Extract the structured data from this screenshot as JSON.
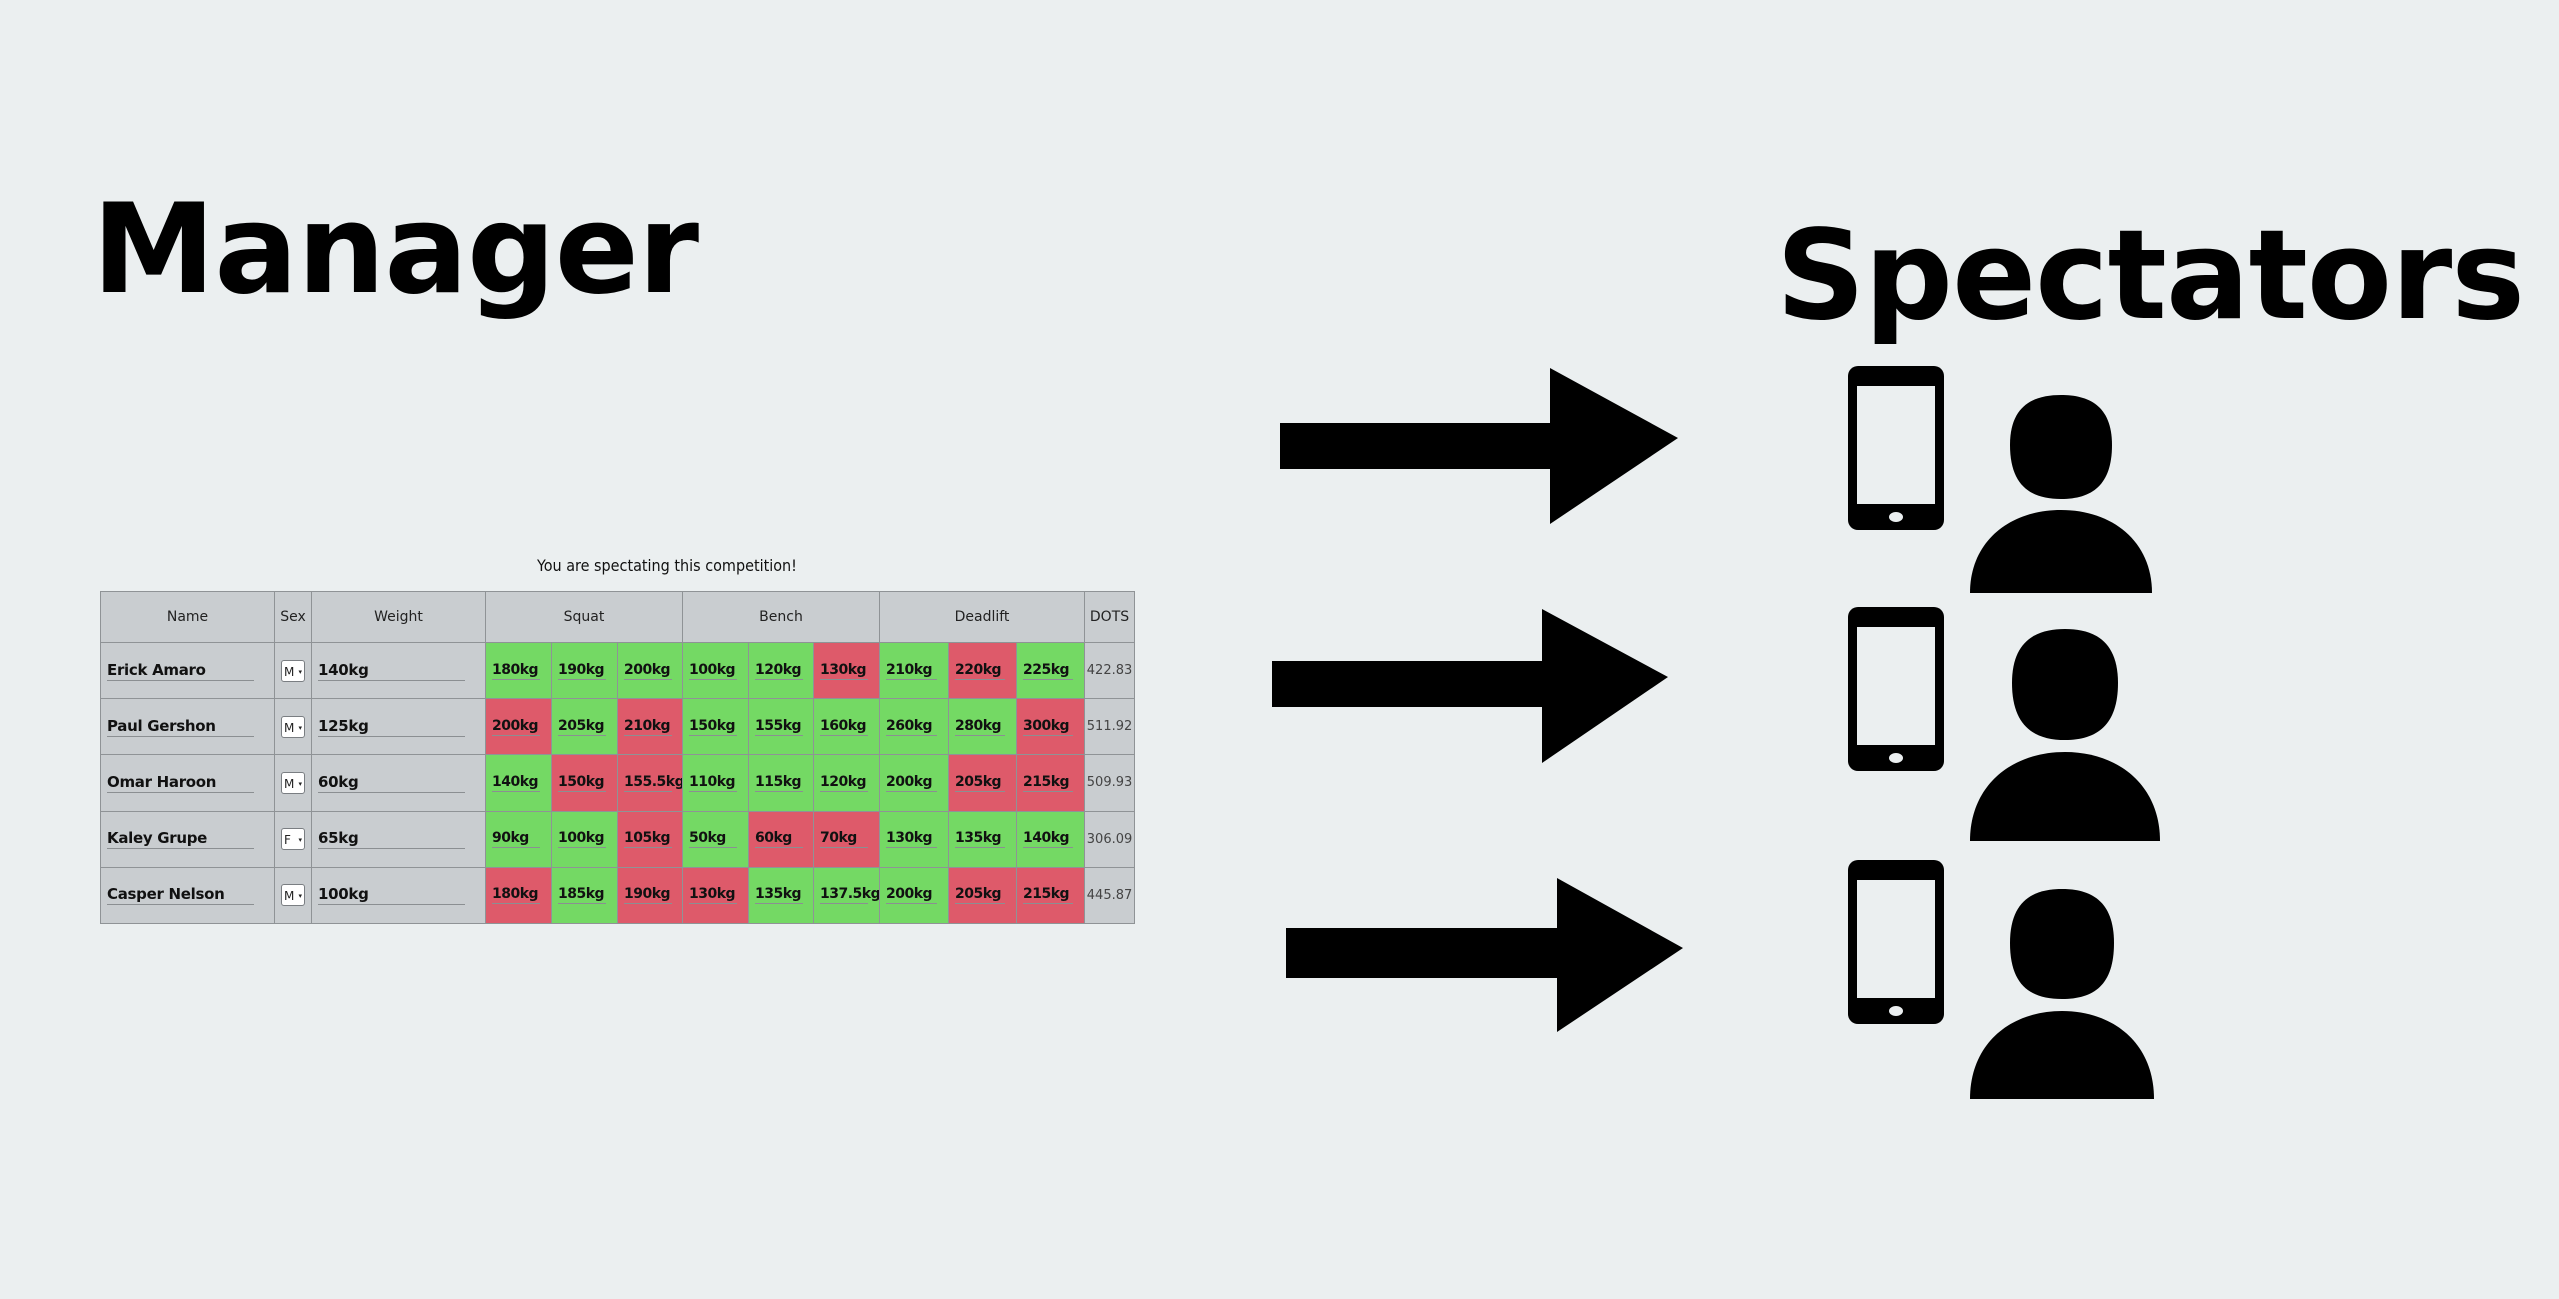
{
  "titles": {
    "manager": "Manager",
    "spectators": "Spectators"
  },
  "notice": "You are spectating this competition!",
  "table": {
    "headers": {
      "name": "Name",
      "sex": "Sex",
      "weight": "Weight",
      "squat": "Squat",
      "bench": "Bench",
      "deadlift": "Deadlift",
      "dots": "DOTS"
    },
    "rows": [
      {
        "name": "Erick Amaro",
        "sex": "M",
        "weight": "140kg",
        "squat": [
          {
            "v": "180kg",
            "ok": true
          },
          {
            "v": "190kg",
            "ok": true
          },
          {
            "v": "200kg",
            "ok": true
          }
        ],
        "bench": [
          {
            "v": "100kg",
            "ok": true
          },
          {
            "v": "120kg",
            "ok": true
          },
          {
            "v": "130kg",
            "ok": false
          }
        ],
        "deadlift": [
          {
            "v": "210kg",
            "ok": true
          },
          {
            "v": "220kg",
            "ok": false
          },
          {
            "v": "225kg",
            "ok": true
          }
        ],
        "dots": "422.83"
      },
      {
        "name": "Paul Gershon",
        "sex": "M",
        "weight": "125kg",
        "squat": [
          {
            "v": "200kg",
            "ok": false
          },
          {
            "v": "205kg",
            "ok": true
          },
          {
            "v": "210kg",
            "ok": false
          }
        ],
        "bench": [
          {
            "v": "150kg",
            "ok": true
          },
          {
            "v": "155kg",
            "ok": true
          },
          {
            "v": "160kg",
            "ok": true
          }
        ],
        "deadlift": [
          {
            "v": "260kg",
            "ok": true
          },
          {
            "v": "280kg",
            "ok": true
          },
          {
            "v": "300kg",
            "ok": false
          }
        ],
        "dots": "511.92"
      },
      {
        "name": "Omar Haroon",
        "sex": "M",
        "weight": "60kg",
        "squat": [
          {
            "v": "140kg",
            "ok": true
          },
          {
            "v": "150kg",
            "ok": false
          },
          {
            "v": "155.5kg",
            "ok": false
          }
        ],
        "bench": [
          {
            "v": "110kg",
            "ok": true
          },
          {
            "v": "115kg",
            "ok": true
          },
          {
            "v": "120kg",
            "ok": true
          }
        ],
        "deadlift": [
          {
            "v": "200kg",
            "ok": true
          },
          {
            "v": "205kg",
            "ok": false
          },
          {
            "v": "215kg",
            "ok": false
          }
        ],
        "dots": "509.93"
      },
      {
        "name": "Kaley Grupe",
        "sex": "F",
        "weight": "65kg",
        "squat": [
          {
            "v": "90kg",
            "ok": true
          },
          {
            "v": "100kg",
            "ok": true
          },
          {
            "v": "105kg",
            "ok": false
          }
        ],
        "bench": [
          {
            "v": "50kg",
            "ok": true
          },
          {
            "v": "60kg",
            "ok": false
          },
          {
            "v": "70kg",
            "ok": false
          }
        ],
        "deadlift": [
          {
            "v": "130kg",
            "ok": true
          },
          {
            "v": "135kg",
            "ok": true
          },
          {
            "v": "140kg",
            "ok": true
          }
        ],
        "dots": "306.09"
      },
      {
        "name": "Casper Nelson",
        "sex": "M",
        "weight": "100kg",
        "squat": [
          {
            "v": "180kg",
            "ok": false
          },
          {
            "v": "185kg",
            "ok": true
          },
          {
            "v": "190kg",
            "ok": false
          }
        ],
        "bench": [
          {
            "v": "130kg",
            "ok": false
          },
          {
            "v": "135kg",
            "ok": true
          },
          {
            "v": "137.5kg",
            "ok": true
          }
        ],
        "deadlift": [
          {
            "v": "200kg",
            "ok": true
          },
          {
            "v": "205kg",
            "ok": false
          },
          {
            "v": "215kg",
            "ok": false
          }
        ],
        "dots": "445.87"
      }
    ]
  },
  "colors": {
    "good_attempt": "#74d964",
    "failed_attempt": "#de5a6a",
    "background": "#ebeff0",
    "table_background": "#c9cdd0"
  },
  "icons": {
    "arrow": "right-arrow-icon",
    "device": "smartphone-icon",
    "viewer": "person-icon"
  }
}
